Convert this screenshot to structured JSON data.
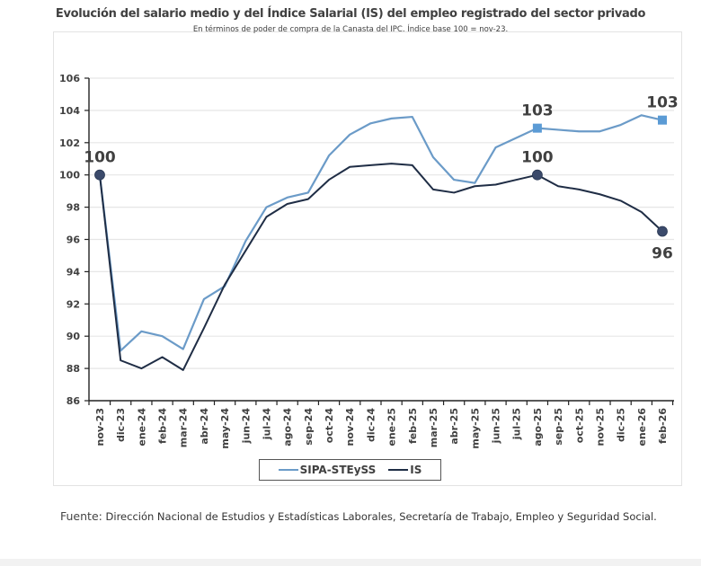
{
  "chart_data": {
    "type": "line",
    "title": "Evolución del salario medio y del Índice Salarial (IS) del empleo registrado del sector privado",
    "subtitle": "En términos de poder de compra de la Canasta del IPC. Índice base 100 = nov-23.",
    "xlabel": "",
    "ylabel": "",
    "ylim": [
      86,
      106
    ],
    "yticks": [
      86,
      88,
      90,
      92,
      94,
      96,
      98,
      100,
      102,
      104,
      106
    ],
    "grid": true,
    "legend_position": "bottom-center",
    "categories": [
      "nov-23",
      "dic-23",
      "ene-24",
      "feb-24",
      "mar-24",
      "abr-24",
      "may-24",
      "jun-24",
      "jul-24",
      "ago-24",
      "sep-24",
      "oct-24",
      "nov-24",
      "dic-24",
      "ene-25",
      "feb-25",
      "mar-25",
      "abr-25",
      "may-25",
      "jun-25",
      "jul-25",
      "ago-25",
      "sep-25",
      "oct-25",
      "nov-25",
      "dic-25",
      "ene-26",
      "feb-26"
    ],
    "series": [
      {
        "name": "SIPA-STEySS",
        "color": "#6b9bc8",
        "marker_color": "#5b9bd5",
        "values": [
          100,
          89.1,
          90.3,
          90.0,
          89.2,
          92.3,
          93.1,
          95.9,
          98.0,
          98.6,
          98.9,
          101.2,
          102.5,
          103.2,
          103.5,
          103.6,
          101.1,
          99.7,
          99.5,
          101.7,
          102.3,
          102.9,
          102.8,
          102.7,
          102.7,
          103.1,
          103.7,
          103.4
        ],
        "annotations": [
          {
            "index": 21,
            "label": "103",
            "marker": "square",
            "position": "above"
          },
          {
            "index": 27,
            "label": "103",
            "marker": "square",
            "position": "above"
          }
        ]
      },
      {
        "name": "IS",
        "color": "#1f2d45",
        "marker_color": "#3b4a6b",
        "values": [
          100,
          88.5,
          88.0,
          88.7,
          87.9,
          90.5,
          93.2,
          95.3,
          97.4,
          98.2,
          98.5,
          99.7,
          100.5,
          100.6,
          100.7,
          100.6,
          99.1,
          98.9,
          99.3,
          99.4,
          99.7,
          100.0,
          99.3,
          99.1,
          98.8,
          98.4,
          97.7,
          96.5
        ],
        "annotations": [
          {
            "index": 0,
            "label": "100",
            "marker": "circle",
            "position": "above"
          },
          {
            "index": 21,
            "label": "100",
            "marker": "circle",
            "position": "above"
          },
          {
            "index": 27,
            "label": "96",
            "marker": "circle",
            "position": "below"
          }
        ]
      }
    ]
  },
  "footer": {
    "source_label": "Fuente:",
    "source_text": " Dirección Nacional de Estudios y Estadísticas Laborales, Secretaría de Trabajo, Empleo y Seguridad Social."
  }
}
